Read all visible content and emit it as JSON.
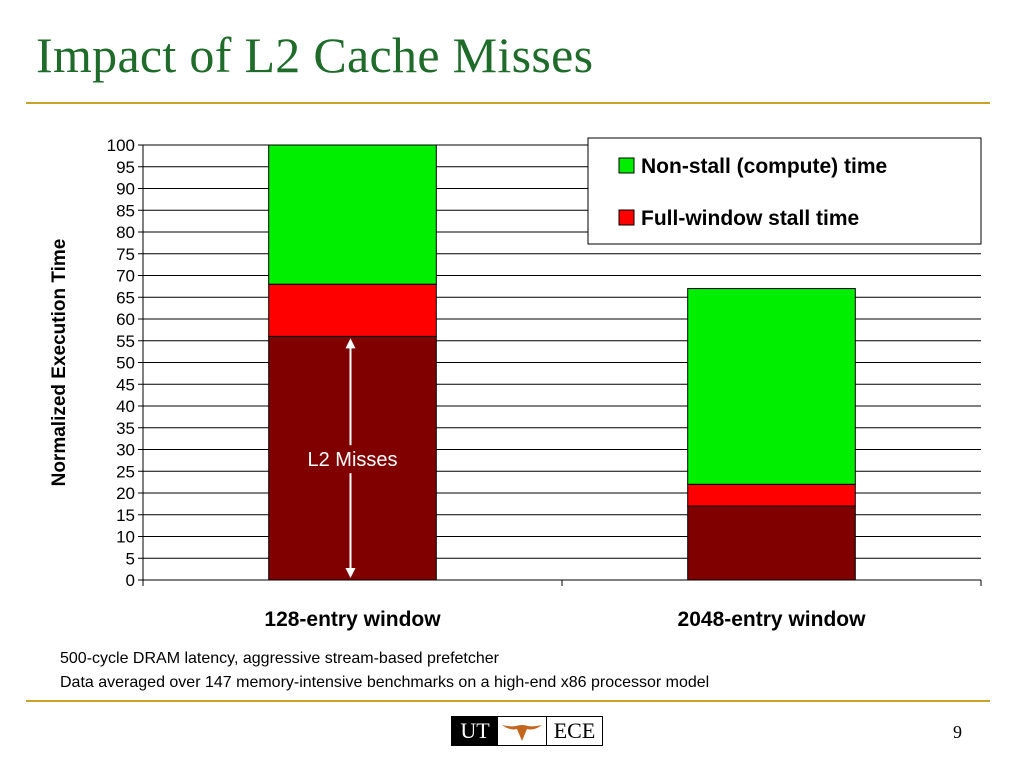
{
  "slide": {
    "title": "Impact of L2 Cache Misses",
    "notes": [
      "500-cycle DRAM latency, aggressive stream-based prefetcher",
      "Data averaged over 147 memory-intensive benchmarks on a high-end x86 processor model"
    ],
    "page_number": "9",
    "logo": {
      "left": "UT",
      "right": "ECE",
      "icon": "longhorn-icon"
    },
    "colors": {
      "title": "#1e6b2a",
      "rule": "#c9a227"
    }
  },
  "chart_data": {
    "type": "bar",
    "stacked": true,
    "categories": [
      "128-entry window",
      "2048-entry window"
    ],
    "series": [
      {
        "name": "",
        "color": "#800000",
        "values": [
          56,
          17
        ]
      },
      {
        "name": "Full-window stall time",
        "color": "#ff0000",
        "values": [
          12,
          5
        ]
      },
      {
        "name": "Non-stall (compute) time",
        "color": "#00ee00",
        "values": [
          32,
          45
        ]
      }
    ],
    "ylabel": "Normalized Execution Time",
    "xlabel": "",
    "ylim": [
      0,
      100
    ],
    "ytick_step": 5,
    "grid": true,
    "legend": {
      "placement": "top-right",
      "entries": [
        "Non-stall (compute) time",
        "Full-window stall time"
      ]
    },
    "annotations": [
      {
        "text": "L2 Misses",
        "category": "128-entry window",
        "from": 0,
        "to": 56,
        "type": "double-arrow"
      }
    ]
  }
}
